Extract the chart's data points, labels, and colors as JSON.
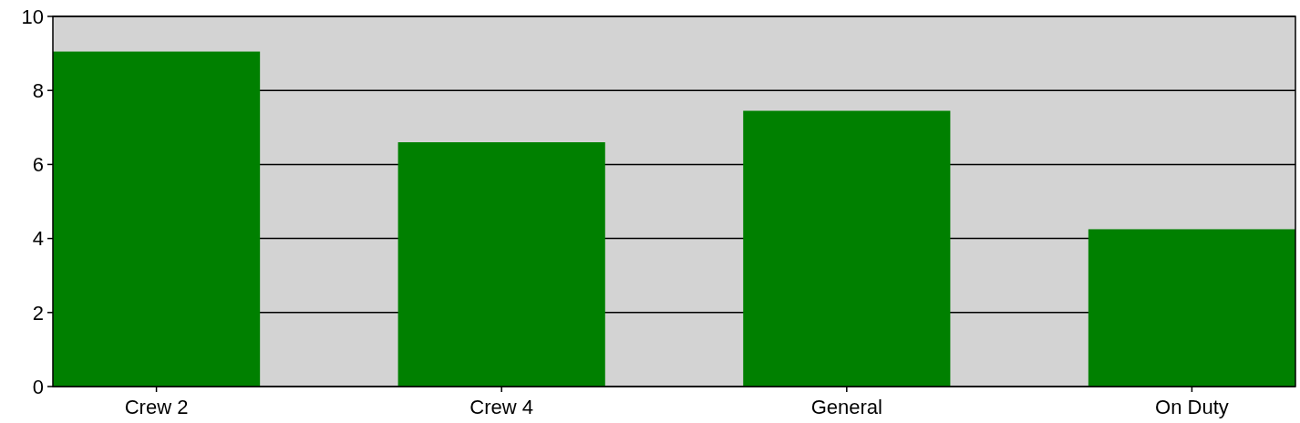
{
  "chart_data": {
    "type": "bar",
    "categories": [
      "Crew 2",
      "Crew 4",
      "General",
      "On Duty"
    ],
    "values": [
      9.05,
      6.6,
      7.45,
      4.25
    ],
    "color": "#008000",
    "ylim": [
      0,
      10
    ],
    "yticks": [
      0,
      2,
      4,
      6,
      8,
      10
    ],
    "grid": "y"
  }
}
